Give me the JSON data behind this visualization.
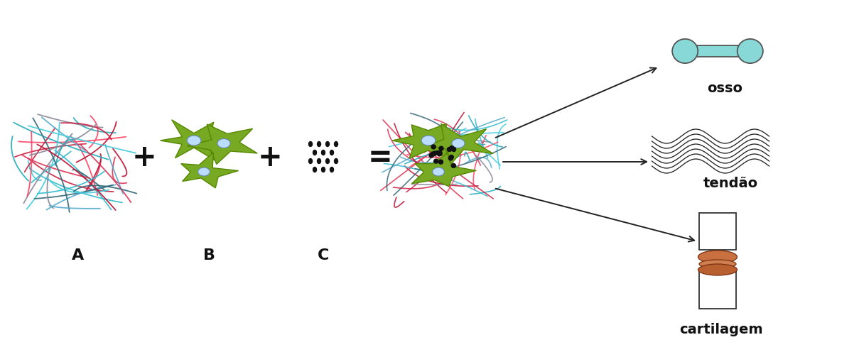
{
  "bg_color": "#ffffff",
  "label_A": "A",
  "label_B": "B",
  "label_C": "C",
  "label_osso": "osso",
  "label_tendao": "tendão",
  "label_cartilagem": "cartilagem",
  "label_fontsize": 13,
  "plus_fontsize": 30,
  "bone_color": "#88d8d8",
  "bone_outline": "#555555",
  "arrow_color": "#222222",
  "fiber_colors": [
    "#dd3355",
    "#cc2244",
    "#ff4466",
    "#bb1133",
    "#22aabb",
    "#33bbcc",
    "#44ccdd",
    "#55aacc",
    "#888899",
    "#336677"
  ],
  "cell_green": "#77aa22",
  "cell_dark": "#558800",
  "nucleus_color": "#bbddff",
  "nucleus_edge": "#6688aa",
  "dot_color": "#111111",
  "joint_upper_color": "#ffffff",
  "joint_lower_color": "#ffffff",
  "joint_ring_color": "#c87040",
  "joint_ring_dark": "#8B4513",
  "wave_color": "#222222"
}
